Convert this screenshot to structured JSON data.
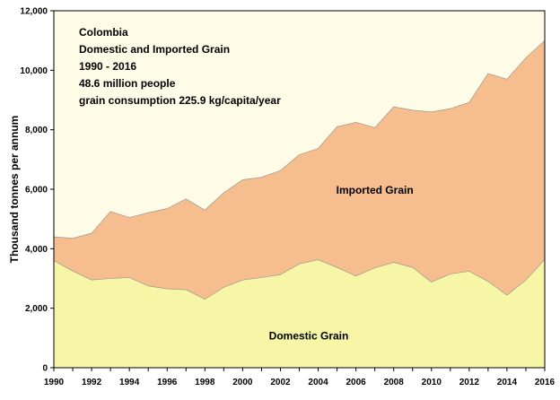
{
  "chart_data": {
    "type": "area",
    "stacked": true,
    "ylabel": "Thousand tonnes per annum",
    "ylim": [
      0,
      12000
    ],
    "yticks": [
      0,
      2000,
      4000,
      6000,
      8000,
      10000,
      12000
    ],
    "ytick_labels": [
      "0",
      "2,000",
      "4,000",
      "6,000",
      "8,000",
      "10,000",
      "12,000"
    ],
    "xlim": [
      1990,
      2016
    ],
    "xticks": [
      1990,
      1992,
      1994,
      1996,
      1998,
      2000,
      2002,
      2004,
      2006,
      2008,
      2010,
      2012,
      2014,
      2016
    ],
    "xtick_labels": [
      "1990",
      "1992",
      "1994",
      "1996",
      "1998",
      "2000",
      "2002",
      "2004",
      "2006",
      "2008",
      "2010",
      "2012",
      "2014",
      "2016"
    ],
    "grid": false,
    "legend": "none",
    "annotation_lines": [
      "Colombia",
      "Domestic and Imported Grain",
      "1990 - 2016",
      "48.6 million people",
      "grain consumption  225.9 kg/capita/year"
    ],
    "x": [
      1990,
      1991,
      1992,
      1993,
      1994,
      1995,
      1996,
      1997,
      1998,
      1999,
      2000,
      2001,
      2002,
      2003,
      2004,
      2005,
      2006,
      2007,
      2008,
      2009,
      2010,
      2011,
      2012,
      2013,
      2014,
      2015,
      2016
    ],
    "series": [
      {
        "name": "Domestic Grain",
        "color": "#f6f6a6",
        "values": [
          3600,
          3250,
          2950,
          3000,
          3030,
          2750,
          2650,
          2620,
          2300,
          2700,
          2950,
          3030,
          3130,
          3490,
          3630,
          3370,
          3080,
          3360,
          3540,
          3370,
          2880,
          3150,
          3240,
          2900,
          2440,
          2950,
          3640
        ]
      },
      {
        "name": "Imported Grain",
        "color": "#f6bd8f",
        "values": [
          800,
          1100,
          1570,
          2250,
          2020,
          2460,
          2700,
          3050,
          3000,
          3180,
          3370,
          3370,
          3500,
          3670,
          3740,
          4730,
          5170,
          4710,
          5230,
          5290,
          5720,
          5560,
          5680,
          6990,
          7260,
          7470,
          7360
        ]
      }
    ],
    "colors": {
      "background": "#fefbe6",
      "frame": "#000000"
    }
  }
}
